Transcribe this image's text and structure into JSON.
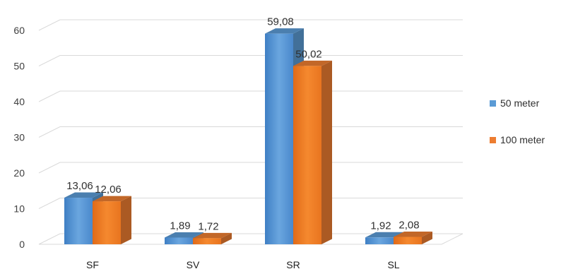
{
  "chart_data": {
    "type": "bar",
    "style": "3d-clustered-column",
    "categories": [
      "SF",
      "SV",
      "SR",
      "SL"
    ],
    "series": [
      {
        "name": "50 meter",
        "values": [
          13.06,
          1.89,
          59.08,
          1.92
        ],
        "labels": [
          "13,06",
          "1,89",
          "59,08",
          "1,92"
        ],
        "color": "#5b9bd5"
      },
      {
        "name": "100 meter",
        "values": [
          12.06,
          1.72,
          50.02,
          2.08
        ],
        "labels": [
          "12,06",
          "1,72",
          "50,02",
          "2,08"
        ],
        "color": "#ed7d31"
      }
    ],
    "ylim": [
      0,
      60
    ],
    "yticks": [
      "0",
      "10",
      "20",
      "30",
      "40",
      "50",
      "60"
    ],
    "grid": true,
    "legend_position": "right"
  }
}
